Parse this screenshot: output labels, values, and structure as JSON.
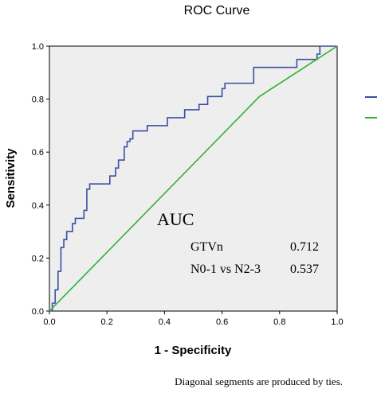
{
  "chart_data": {
    "type": "line",
    "title": "ROC Curve",
    "xlabel": "1 - Specificity",
    "ylabel": "Sensitivity",
    "xlim": [
      0,
      1
    ],
    "ylim": [
      0,
      1
    ],
    "x_ticks": [
      "0.0",
      "0.2",
      "0.4",
      "0.6",
      "0.8",
      "1.0"
    ],
    "y_ticks": [
      "0.0",
      "0.2",
      "0.4",
      "0.6",
      "0.8",
      "1.0"
    ],
    "grid": false,
    "background": "#eeeeee",
    "series": [
      {
        "color": "#3a4fa3",
        "x": [
          0,
          0.01,
          0.01,
          0.02,
          0.02,
          0.03,
          0.03,
          0.04,
          0.04,
          0.05,
          0.05,
          0.06,
          0.06,
          0.08,
          0.08,
          0.09,
          0.09,
          0.12,
          0.12,
          0.13,
          0.13,
          0.14,
          0.14,
          0.21,
          0.21,
          0.23,
          0.23,
          0.24,
          0.24,
          0.26,
          0.26,
          0.27,
          0.27,
          0.28,
          0.28,
          0.29,
          0.29,
          0.34,
          0.34,
          0.41,
          0.41,
          0.47,
          0.47,
          0.52,
          0.52,
          0.55,
          0.55,
          0.6,
          0.6,
          0.61,
          0.61,
          0.63,
          0.63,
          0.71,
          0.71,
          0.78,
          0.78,
          0.86,
          0.86,
          0.93,
          0.93,
          0.94,
          0.94,
          1.0
        ],
        "y": [
          0,
          0,
          0.03,
          0.03,
          0.08,
          0.08,
          0.15,
          0.15,
          0.24,
          0.24,
          0.27,
          0.27,
          0.3,
          0.3,
          0.33,
          0.33,
          0.35,
          0.35,
          0.38,
          0.38,
          0.46,
          0.46,
          0.48,
          0.48,
          0.51,
          0.51,
          0.54,
          0.54,
          0.57,
          0.57,
          0.62,
          0.62,
          0.64,
          0.64,
          0.65,
          0.65,
          0.68,
          0.68,
          0.7,
          0.7,
          0.73,
          0.73,
          0.76,
          0.76,
          0.78,
          0.78,
          0.81,
          0.81,
          0.84,
          0.84,
          0.86,
          0.86,
          0.86,
          0.86,
          0.92,
          0.92,
          0.92,
          0.92,
          0.95,
          0.95,
          0.97,
          0.97,
          1.0,
          1.0
        ]
      },
      {
        "color": "#33b233",
        "x": [
          0,
          0.73,
          1.0
        ],
        "y": [
          0,
          0.81,
          1.0
        ]
      }
    ],
    "legend_swatches": [
      "#3a4fa3",
      "#33b233"
    ],
    "annotation": {
      "heading": "AUC",
      "rows": [
        {
          "label": "GTVn",
          "value": "0.712"
        },
        {
          "label": "N0-1 vs N2-3",
          "value": "0.537"
        }
      ]
    },
    "footnote": "Diagonal segments are produced by ties."
  }
}
